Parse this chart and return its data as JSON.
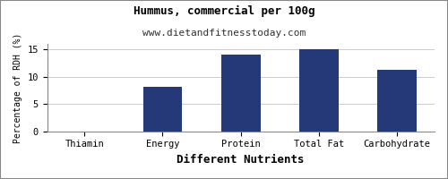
{
  "title": "Hummus, commercial per 100g",
  "subtitle": "www.dietandfitnesstoday.com",
  "xlabel": "Different Nutrients",
  "ylabel": "Percentage of RDH (%)",
  "categories": [
    "Thiamin",
    "Energy",
    "Protein",
    "Total Fat",
    "Carbohydrate"
  ],
  "values": [
    0.0,
    8.1,
    14.0,
    15.0,
    11.3
  ],
  "bar_color": "#253878",
  "ylim": [
    0,
    16
  ],
  "yticks": [
    0,
    5,
    10,
    15
  ],
  "background_color": "#ffffff",
  "plot_bg_color": "#ffffff",
  "title_fontsize": 9,
  "subtitle_fontsize": 8,
  "xlabel_fontsize": 9,
  "ylabel_fontsize": 7,
  "tick_fontsize": 7.5,
  "border_color": "#888888",
  "grid_color": "#cccccc"
}
